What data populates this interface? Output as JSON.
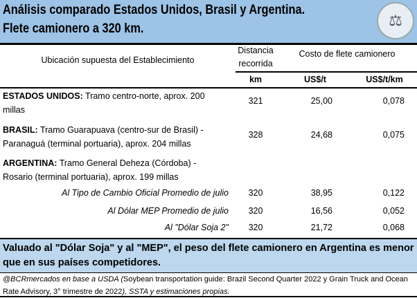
{
  "header": {
    "title_line1": "Análisis comparado Estados Unidos, Brasil y Argentina.",
    "title_line2": "Flete camionero a 320 km.",
    "logo": "Bolsa de Comercio de Rosario"
  },
  "columns": {
    "location": "Ubicación supuesta del Establecimiento",
    "distance_l1": "Distancia",
    "distance_l2": "recorrida",
    "cost": "Costo de flete camionero",
    "unit_km": "km",
    "unit_t": "US$/t",
    "unit_tkm": "US$/t/km"
  },
  "rows": [
    {
      "country": "ESTADOS UNIDOS:",
      "desc1": " Tramo centro-norte, aprox. 200",
      "desc2": "millas",
      "km": "321",
      "usd_t": "25,00",
      "usd_tkm": "0,078"
    },
    {
      "country": "BRASIL:",
      "desc1": " Tramo Guarapuava (centro-sur de Brasil) -",
      "desc2": "Paranaguá (terminal portuaria), aprox. 204 millas",
      "km": "328",
      "usd_t": "24,68",
      "usd_tkm": "0,075"
    },
    {
      "country": "ARGENTINA:",
      "desc1": " Tramo General Deheza (Córdoba) -",
      "desc2": "Rosario (terminal portuaria), aprox. 199 millas"
    }
  ],
  "arg_rows": [
    {
      "label": "Al Tipo de Cambio Oficial Promedio de julio",
      "km": "320",
      "usd_t": "38,95",
      "usd_tkm": "0,122"
    },
    {
      "label": "Al Dólar MEP Promedio de julio",
      "km": "320",
      "usd_t": "16,56",
      "usd_tkm": "0,052"
    },
    {
      "label": "Al \"Dólar Soja 2\"",
      "km": "320",
      "usd_t": "21,72",
      "usd_tkm": "0,068"
    }
  ],
  "conclusion": "Valuado al \"Dólar Soja\" y al \"MEP\", el peso del flete camionero en Argentina es menor que en sus países competidores.",
  "footnote": {
    "italic1": "@BCRmercados en base a USDA (",
    "normal": "Soybean transportation guide: Brazil Second Quarter 2022 y Grain Truck and Ocean Rate Advisory, 3° trimestre de 2022",
    "italic2": "), SSTA y estimaciones propias."
  },
  "colors": {
    "header": "#9dc3e6",
    "band": "#bdd7ee"
  }
}
